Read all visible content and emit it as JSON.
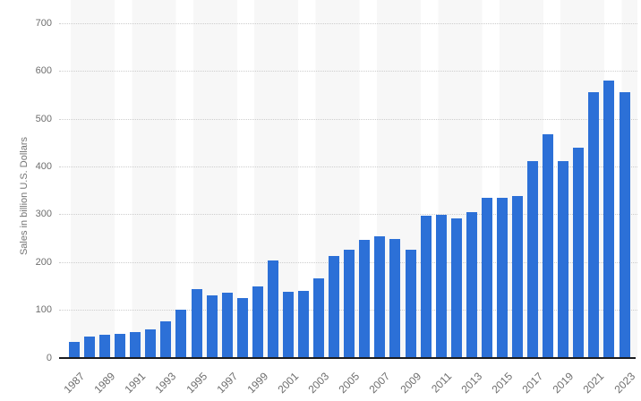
{
  "chart_data": {
    "type": "bar",
    "title": "",
    "xlabel": "",
    "ylabel": "Sales in billion U.S. Dollars",
    "categories": [
      "1987",
      "1988",
      "1989",
      "1990",
      "1991",
      "1992",
      "1993",
      "1994",
      "1995",
      "1996",
      "1997",
      "1998",
      "1999",
      "2000",
      "2001",
      "2002",
      "2003",
      "2004",
      "2005",
      "2006",
      "2007",
      "2008",
      "2009",
      "2010",
      "2011",
      "2012",
      "2013",
      "2014",
      "2015",
      "2016",
      "2017",
      "2018",
      "2019",
      "2020",
      "2021",
      "2022",
      "2023"
    ],
    "values": [
      33.0,
      45.4,
      48.8,
      50.5,
      54.6,
      59.9,
      77.3,
      101.9,
      144.4,
      132.0,
      137.2,
      125.6,
      149.4,
      204.4,
      139.0,
      140.7,
      166.4,
      213.0,
      227.5,
      247.7,
      255.6,
      248.6,
      226.3,
      298.3,
      299.5,
      291.6,
      305.6,
      335.8,
      335.2,
      338.9,
      412.2,
      468.8,
      412.3,
      440.4,
      555.9,
      580.1,
      556.6
    ],
    "x_tick_labels": [
      "1987",
      "1989",
      "1991",
      "1993",
      "1995",
      "1997",
      "1999",
      "2001",
      "2003",
      "2005",
      "2007",
      "2009",
      "2011",
      "2013",
      "2015",
      "2017",
      "2019",
      "2021",
      "2023"
    ],
    "y_ticks": [
      0,
      100,
      200,
      300,
      400,
      500,
      600,
      700
    ],
    "ylim": [
      0,
      700
    ],
    "grid": "horizontal dotted",
    "legend": "none",
    "colors": {
      "bar": "#2c70d7",
      "band": "#f7f7f7",
      "gridline": "#cdcdcd",
      "axis_line": "#1a1b1f",
      "tick_label": "#6e6e6e",
      "axis_title": "#757575",
      "background": "#ffffff"
    }
  }
}
